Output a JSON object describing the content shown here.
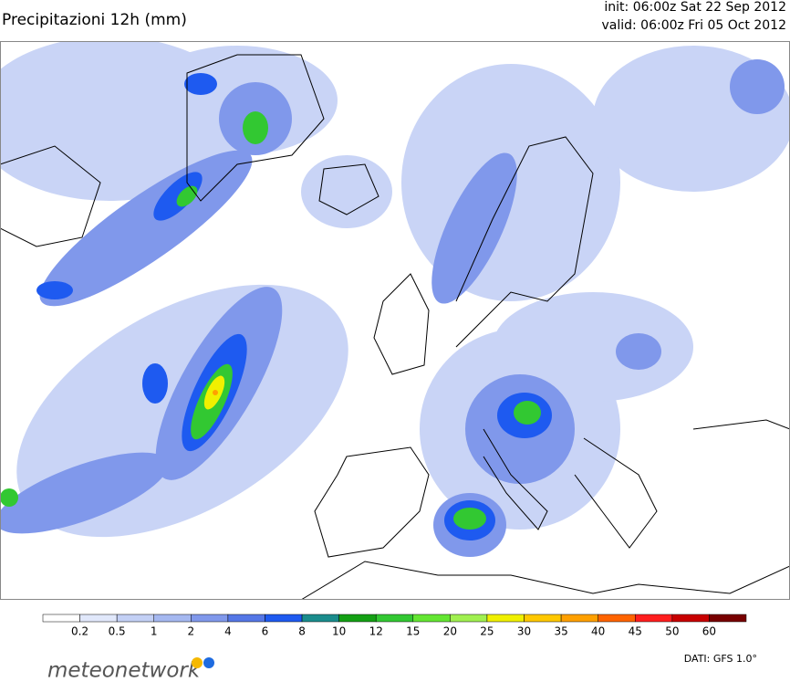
{
  "header": {
    "title": "Precipitazioni 12h (mm)",
    "init": "init: 06:00z Sat 22 Sep 2012",
    "valid": "valid: 06:00z Fri 05 Oct 2012"
  },
  "legend": {
    "colors": [
      "#ffffff",
      "#e1e8fb",
      "#c3d0f5",
      "#a5b8f0",
      "#8098eb",
      "#5577e6",
      "#1e5af0",
      "#1a8c8c",
      "#14a014",
      "#32c832",
      "#64e632",
      "#a0f050",
      "#f0f000",
      "#ffc800",
      "#ffa000",
      "#ff6400",
      "#ff1e1e",
      "#c80000",
      "#780000"
    ],
    "labels": [
      "0.2",
      "0.5",
      "1",
      "2",
      "4",
      "6",
      "8",
      "10",
      "12",
      "15",
      "20",
      "25",
      "30",
      "35",
      "40",
      "45",
      "50",
      "60"
    ]
  },
  "footer": {
    "brand": "meteonetwork",
    "source": "DATI: GFS 1.0°"
  }
}
